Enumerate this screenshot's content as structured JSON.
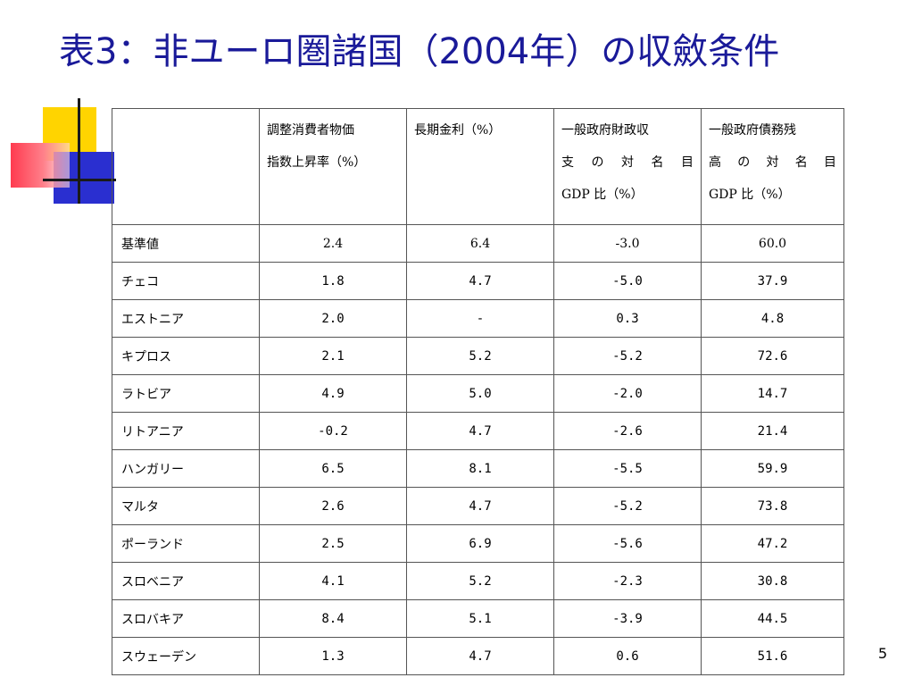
{
  "slide": {
    "title": "表3：非ユーロ圏諸国（2004年）の収斂条件",
    "page_number": "5"
  },
  "table": {
    "headers": [
      "",
      "調整消費者物価指数上昇率（%）",
      "長期金利（%）",
      "一般政府財政収支の対名目GDP比（%）",
      "一般政府債務残高の対名目GDP比（%）"
    ],
    "header_lines": [
      [],
      [
        "調整消費者物価",
        "指数上昇率（%）"
      ],
      [
        "長期金利（%）"
      ],
      [
        "一般政府財政収",
        "支 の 対 名 目",
        "GDP 比（%）"
      ],
      [
        "一般政府債務残",
        "高 の 対 名 目",
        "GDP 比（%）"
      ]
    ],
    "rows": [
      {
        "label": "基準値",
        "cpi": "2.4",
        "rate": "6.4",
        "balance": "-3.0",
        "debt": "60.0"
      },
      {
        "label": "チェコ",
        "cpi": "1.8",
        "rate": "4.7",
        "balance": "-5.0",
        "debt": "37.9"
      },
      {
        "label": "エストニア",
        "cpi": "2.0",
        "rate": "-",
        "balance": "0.3",
        "debt": "4.8"
      },
      {
        "label": "キプロス",
        "cpi": "2.1",
        "rate": "5.2",
        "balance": "-5.2",
        "debt": "72.6"
      },
      {
        "label": "ラトビア",
        "cpi": "4.9",
        "rate": "5.0",
        "balance": "-2.0",
        "debt": "14.7"
      },
      {
        "label": "リトアニア",
        "cpi": "-0.2",
        "rate": "4.7",
        "balance": "-2.6",
        "debt": "21.4"
      },
      {
        "label": "ハンガリー",
        "cpi": "6.5",
        "rate": "8.1",
        "balance": "-5.5",
        "debt": "59.9"
      },
      {
        "label": "マルタ",
        "cpi": "2.6",
        "rate": "4.7",
        "balance": "-5.2",
        "debt": "73.8"
      },
      {
        "label": "ポーランド",
        "cpi": "2.5",
        "rate": "6.9",
        "balance": "-5.6",
        "debt": "47.2"
      },
      {
        "label": "スロベニア",
        "cpi": "4.1",
        "rate": "5.2",
        "balance": "-2.3",
        "debt": "30.8"
      },
      {
        "label": "スロバキア",
        "cpi": "8.4",
        "rate": "5.1",
        "balance": "-3.9",
        "debt": "44.5"
      },
      {
        "label": "スウェーデン",
        "cpi": "1.3",
        "rate": "4.7",
        "balance": "0.6",
        "debt": "51.6"
      }
    ]
  },
  "colors": {
    "title": "#1a1a99",
    "deco_yellow": "#ffd400",
    "deco_blue": "#2a2fd0",
    "deco_red": "#ff3b4f",
    "border": "#555555"
  }
}
